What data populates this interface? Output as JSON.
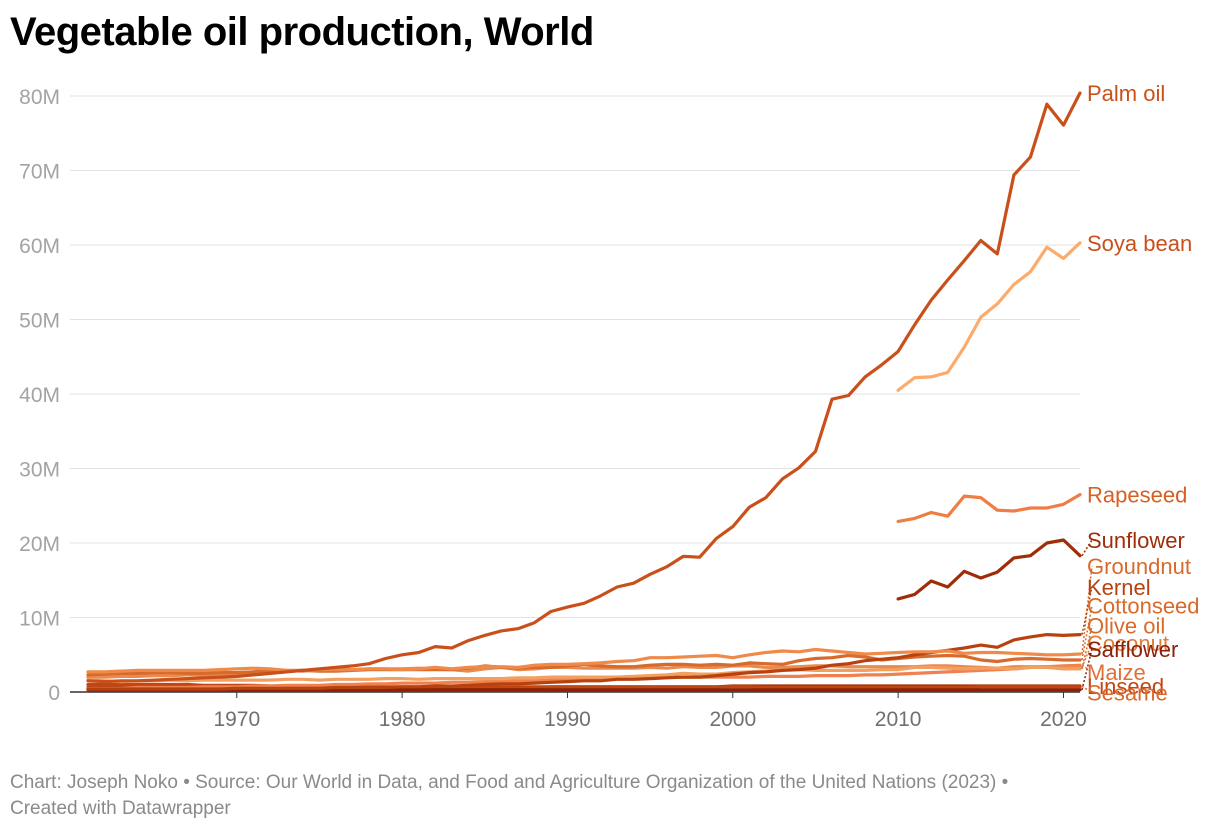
{
  "chart_data": {
    "type": "line",
    "title": "Vegetable oil production, World",
    "xlabel": "",
    "ylabel": "",
    "xlim": [
      1961,
      2021
    ],
    "ylim": [
      0,
      80000000
    ],
    "x_ticks": [
      1970,
      1980,
      1990,
      2000,
      2010,
      2020
    ],
    "y_ticks": [
      {
        "value": 0,
        "label": "0"
      },
      {
        "value": 10000000,
        "label": "10M"
      },
      {
        "value": 20000000,
        "label": "20M"
      },
      {
        "value": 30000000,
        "label": "30M"
      },
      {
        "value": 40000000,
        "label": "40M"
      },
      {
        "value": 50000000,
        "label": "50M"
      },
      {
        "value": 60000000,
        "label": "60M"
      },
      {
        "value": 70000000,
        "label": "70M"
      },
      {
        "value": 80000000,
        "label": "80M"
      }
    ],
    "grid": "horizontal",
    "legend": "direct labels at right",
    "series": [
      {
        "name": "Palm oil",
        "color": "#c9501a",
        "start": 1961,
        "values": [
          1.5,
          1.4,
          1.5,
          1.5,
          1.6,
          1.7,
          1.8,
          1.9,
          2.0,
          2.1,
          2.3,
          2.5,
          2.7,
          2.9,
          3.1,
          3.3,
          3.5,
          3.8,
          4.5,
          5.0,
          5.3,
          6.1,
          5.9,
          6.9,
          7.6,
          8.2,
          8.5,
          9.3,
          10.8,
          11.4,
          11.9,
          12.9,
          14.1,
          14.6,
          15.8,
          16.8,
          18.2,
          18.1,
          20.6,
          22.2,
          24.8,
          26.1,
          28.6,
          30.1,
          32.3,
          39.3,
          39.8,
          42.3,
          43.9,
          45.7,
          49.3,
          52.6,
          55.3,
          57.9,
          60.6,
          58.8,
          69.4,
          71.8,
          78.9,
          76.1,
          80.4
        ]
      },
      {
        "name": "Soya bean",
        "color": "#fdab6b",
        "start": 2010,
        "values": [
          40.5,
          42.2,
          42.3,
          42.9,
          46.3,
          50.3,
          52.1,
          54.7,
          56.4,
          59.7,
          58.2,
          60.3
        ]
      },
      {
        "name": "Rapeseed",
        "color": "#f07d43",
        "start": 2010,
        "values": [
          22.9,
          23.3,
          24.1,
          23.6,
          26.3,
          26.1,
          24.4,
          24.3,
          24.7,
          24.7,
          25.2,
          26.5
        ]
      },
      {
        "name": "Sunflower",
        "color": "#9e2d08",
        "start": 2010,
        "values": [
          12.5,
          13.1,
          14.9,
          14.1,
          16.2,
          15.3,
          16.1,
          18.0,
          18.3,
          20.0,
          20.4,
          18.3
        ]
      },
      {
        "name": "Groundnut",
        "color": "#ef8a4a",
        "start": 1961,
        "values": [
          2.7,
          2.7,
          2.8,
          2.9,
          2.9,
          2.9,
          2.9,
          2.9,
          3.0,
          3.1,
          3.2,
          3.1,
          2.9,
          2.9,
          3.0,
          3.0,
          3.0,
          3.1,
          3.1,
          3.0,
          3.1,
          3.3,
          3.1,
          3.3,
          3.4,
          3.4,
          3.3,
          3.6,
          3.7,
          3.7,
          3.8,
          3.9,
          4.1,
          4.2,
          4.6,
          4.6,
          4.7,
          4.8,
          4.9,
          4.6,
          5.0,
          5.3,
          5.5,
          5.4,
          5.7,
          5.5,
          5.3,
          5.1,
          5.2,
          5.3,
          5.4,
          5.4,
          5.5,
          5.2,
          5.3,
          5.3,
          5.2,
          5.1,
          5.0,
          5.0,
          5.1
        ]
      },
      {
        "name": "Kernel",
        "color": "#b8420f",
        "start": 1961,
        "values": [
          0.4,
          0.4,
          0.4,
          0.4,
          0.4,
          0.4,
          0.4,
          0.4,
          0.4,
          0.5,
          0.5,
          0.5,
          0.5,
          0.5,
          0.5,
          0.6,
          0.6,
          0.6,
          0.6,
          0.7,
          0.7,
          0.8,
          0.8,
          0.9,
          1.0,
          1.1,
          1.1,
          1.2,
          1.3,
          1.4,
          1.5,
          1.5,
          1.7,
          1.7,
          1.8,
          1.9,
          2.0,
          2.0,
          2.2,
          2.4,
          2.6,
          2.7,
          2.9,
          3.0,
          3.2,
          3.6,
          3.8,
          4.2,
          4.4,
          4.6,
          5.0,
          5.3,
          5.6,
          5.9,
          6.3,
          6.0,
          7.0,
          7.4,
          7.7,
          7.6,
          7.7
        ]
      },
      {
        "name": "Cottonseed",
        "color": "#d86a2c",
        "start": 1961,
        "values": [
          2.3,
          2.4,
          2.5,
          2.5,
          2.6,
          2.6,
          2.5,
          2.5,
          2.6,
          2.6,
          2.7,
          2.8,
          2.8,
          2.9,
          2.8,
          2.8,
          2.9,
          3.0,
          3.0,
          3.0,
          3.0,
          3.0,
          3.0,
          3.2,
          3.5,
          3.3,
          3.2,
          3.3,
          3.3,
          3.5,
          3.7,
          3.5,
          3.4,
          3.4,
          3.6,
          3.7,
          3.7,
          3.6,
          3.7,
          3.6,
          3.9,
          3.8,
          3.7,
          4.2,
          4.5,
          4.6,
          4.9,
          4.7,
          4.3,
          4.5,
          4.7,
          4.8,
          4.9,
          4.8,
          4.3,
          4.1,
          4.4,
          4.5,
          4.4,
          4.3,
          4.3
        ]
      },
      {
        "name": "Olive oil",
        "color": "#f2a060",
        "start": 1961,
        "values": [
          1.6,
          1.5,
          1.4,
          1.5,
          1.5,
          1.6,
          1.5,
          1.6,
          1.6,
          1.6,
          1.6,
          1.6,
          1.7,
          1.7,
          1.6,
          1.7,
          1.7,
          1.7,
          1.8,
          1.8,
          1.7,
          1.8,
          1.8,
          1.8,
          1.8,
          1.8,
          1.9,
          1.9,
          2.0,
          2.0,
          2.0,
          2.0,
          2.0,
          2.1,
          2.2,
          2.3,
          2.5,
          2.4,
          2.4,
          2.6,
          2.7,
          2.8,
          3.0,
          3.0,
          2.9,
          2.9,
          2.9,
          2.9,
          3.0,
          3.0,
          3.3,
          3.3,
          3.2,
          3.1,
          3.2,
          3.2,
          3.1,
          3.3,
          3.3,
          3.1,
          3.1
        ]
      },
      {
        "name": "Coconut",
        "color": "#e98a50",
        "start": 1961,
        "values": [
          2.0,
          2.0,
          2.1,
          2.1,
          2.2,
          2.2,
          2.3,
          2.3,
          2.4,
          2.4,
          2.7,
          3.0,
          2.9,
          2.8,
          3.0,
          3.1,
          3.0,
          3.1,
          3.1,
          3.1,
          3.2,
          3.1,
          3.0,
          2.8,
          3.1,
          3.3,
          3.0,
          3.1,
          3.3,
          3.3,
          3.2,
          3.2,
          3.2,
          3.2,
          3.3,
          3.2,
          3.4,
          3.3,
          3.3,
          3.5,
          3.5,
          3.3,
          3.3,
          3.4,
          3.5,
          3.5,
          3.4,
          3.4,
          3.4,
          3.4,
          3.4,
          3.5,
          3.5,
          3.4,
          3.3,
          3.2,
          3.4,
          3.4,
          3.4,
          3.3,
          3.3
        ]
      },
      {
        "name": "Safflower",
        "color": "#8c2106",
        "start": 1961,
        "values": [
          0.3,
          0.3,
          0.3,
          0.3,
          0.3,
          0.3,
          0.3,
          0.3,
          0.3,
          0.3,
          0.3,
          0.3,
          0.3,
          0.3,
          0.3,
          0.3,
          0.3,
          0.3,
          0.3,
          0.3,
          0.3,
          0.3,
          0.3,
          0.3,
          0.3,
          0.3,
          0.3,
          0.3,
          0.3,
          0.3,
          0.3,
          0.3,
          0.3,
          0.3,
          0.3,
          0.3,
          0.3,
          0.3,
          0.3,
          0.3,
          0.3,
          0.3,
          0.3,
          0.3,
          0.3,
          0.3,
          0.3,
          0.3,
          0.3,
          0.3,
          0.3,
          0.3,
          0.3,
          0.3,
          0.3,
          0.3,
          0.3,
          0.3,
          0.3,
          0.3,
          0.3
        ]
      },
      {
        "name": "Maize",
        "color": "#f08050",
        "start": 1961,
        "values": [
          0.5,
          0.5,
          0.5,
          0.6,
          0.6,
          0.6,
          0.6,
          0.7,
          0.7,
          0.7,
          0.8,
          0.8,
          0.9,
          0.9,
          0.9,
          1.0,
          1.0,
          1.1,
          1.1,
          1.2,
          1.2,
          1.2,
          1.3,
          1.3,
          1.4,
          1.4,
          1.5,
          1.5,
          1.6,
          1.7,
          1.7,
          1.8,
          1.8,
          1.9,
          1.9,
          2.0,
          2.0,
          2.0,
          2.0,
          2.0,
          2.0,
          2.1,
          2.1,
          2.1,
          2.2,
          2.2,
          2.2,
          2.3,
          2.3,
          2.4,
          2.5,
          2.6,
          2.7,
          2.8,
          2.9,
          3.0,
          3.1,
          3.3,
          3.4,
          3.5,
          3.6
        ]
      },
      {
        "name": "Linseed",
        "color": "#c24612",
        "start": 1961,
        "values": [
          1.0,
          1.0,
          1.0,
          1.0,
          1.0,
          1.0,
          1.0,
          0.9,
          0.9,
          0.9,
          0.9,
          0.8,
          0.8,
          0.8,
          0.8,
          0.7,
          0.7,
          0.7,
          0.7,
          0.7,
          0.7,
          0.7,
          0.7,
          0.7,
          0.7,
          0.7,
          0.7,
          0.7,
          0.7,
          0.7,
          0.7,
          0.7,
          0.7,
          0.7,
          0.7,
          0.7,
          0.7,
          0.7,
          0.7,
          0.7,
          0.7,
          0.6,
          0.6,
          0.6,
          0.6,
          0.6,
          0.6,
          0.6,
          0.6,
          0.6,
          0.6,
          0.6,
          0.6,
          0.6,
          0.7,
          0.7,
          0.7,
          0.7,
          0.7,
          0.7,
          0.7
        ]
      },
      {
        "name": "Sesame",
        "color": "#a33209",
        "start": 1961,
        "values": [
          0.6,
          0.6,
          0.6,
          0.6,
          0.6,
          0.6,
          0.6,
          0.6,
          0.6,
          0.6,
          0.6,
          0.6,
          0.6,
          0.6,
          0.6,
          0.6,
          0.6,
          0.6,
          0.6,
          0.6,
          0.6,
          0.6,
          0.6,
          0.6,
          0.6,
          0.6,
          0.6,
          0.6,
          0.7,
          0.7,
          0.7,
          0.7,
          0.7,
          0.7,
          0.7,
          0.7,
          0.7,
          0.7,
          0.7,
          0.8,
          0.8,
          0.8,
          0.8,
          0.8,
          0.8,
          0.8,
          0.8,
          0.8,
          0.8,
          0.8,
          0.8,
          0.8,
          0.8,
          0.8,
          0.8,
          0.8,
          0.8,
          0.8,
          0.8,
          0.8,
          0.8
        ]
      }
    ],
    "value_unit_note": "values are in millions",
    "end_labels": [
      {
        "name": "Palm oil",
        "color": "#c9501a",
        "y": 80.4
      },
      {
        "name": "Soya bean",
        "color": "#c9501a",
        "y": 60.3
      },
      {
        "name": "Rapeseed",
        "color": "#d75f22",
        "y": 26.5
      },
      {
        "name": "Sunflower",
        "color": "#9e2d08",
        "y": 20.4
      },
      {
        "name": "Groundnut",
        "color": "#d86a2c",
        "y": 16.9
      },
      {
        "name": "Kernel",
        "color": "#b8420f",
        "y": 14.1
      },
      {
        "name": "Cottonseed",
        "color": "#d86a2c",
        "y": 11.6
      },
      {
        "name": "Olive oil",
        "color": "#d86a2c",
        "y": 8.9
      },
      {
        "name": "Coconut",
        "color": "#e27a3a",
        "y": 6.6
      },
      {
        "name": "Safflower",
        "color": "#8c2106",
        "y": 5.8
      },
      {
        "name": "Maize",
        "color": "#e0703a",
        "y": 2.7
      },
      {
        "name": "Linseed",
        "color": "#c24612",
        "y": 0.8
      },
      {
        "name": "Sesame",
        "color": "#d86a2c",
        "y": -0.1
      }
    ]
  },
  "footer": {
    "line1": "Chart: Joseph Noko • Source: Our World in Data, and Food and Agriculture Organization of the United Nations (2023) •",
    "line2": "Created with Datawrapper"
  }
}
